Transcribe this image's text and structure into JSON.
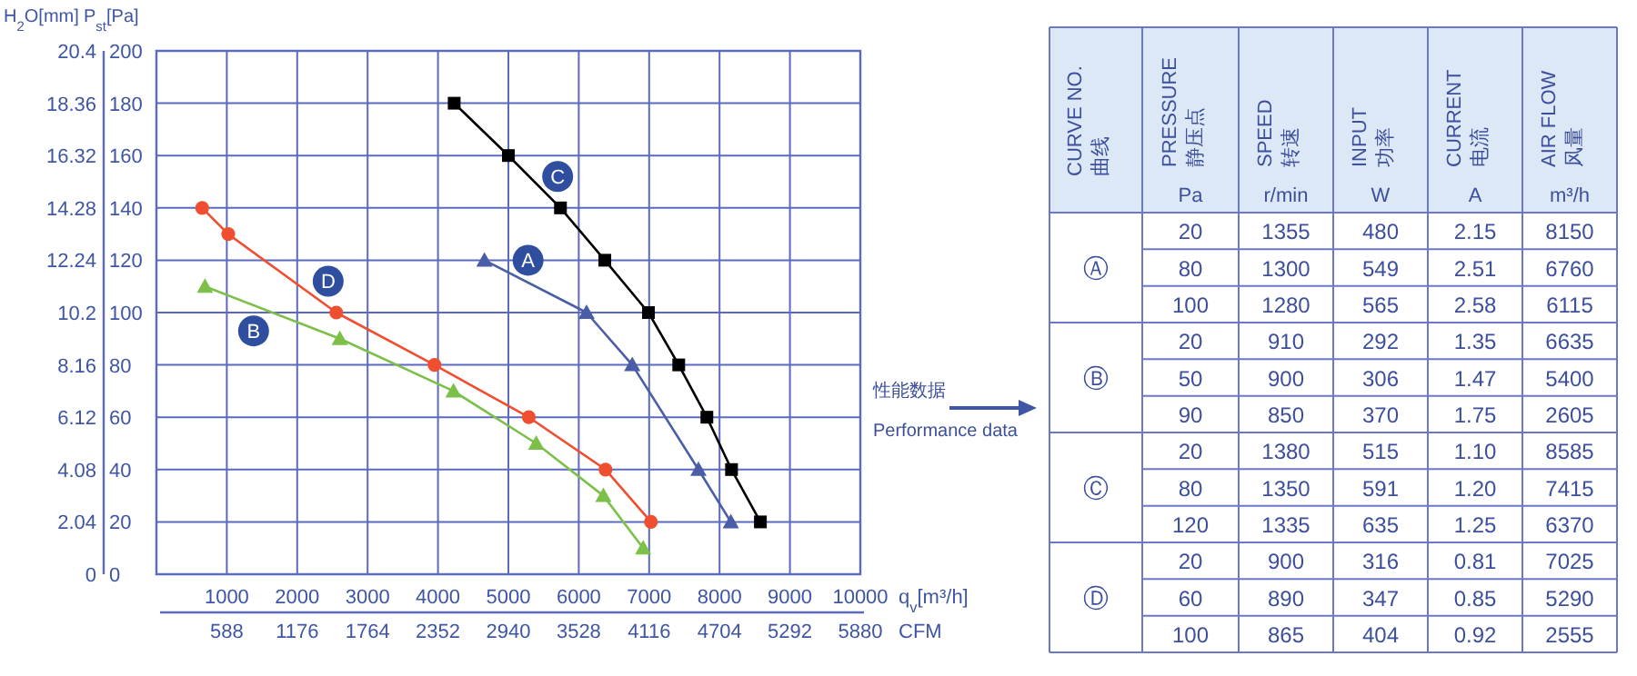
{
  "chart_data": [
    {
      "type": "line",
      "ylabel": "P$_{st}$[Pa]",
      "y2label": "H$_{2}$O[mm]",
      "xlabel": "q$_{v}$[m³/h]",
      "x2label": "CFM",
      "xlim": [
        0,
        10000
      ],
      "xticks": [
        1000,
        2000,
        3000,
        4000,
        5000,
        6000,
        7000,
        8000,
        9000,
        10000
      ],
      "x2lim": [
        0,
        5880
      ],
      "x2ticks": [
        588,
        1176,
        1764,
        2352,
        2940,
        3528,
        4116,
        4704,
        5292,
        5880
      ],
      "ylim": [
        0,
        200
      ],
      "yticks": [
        0,
        20,
        40,
        60,
        80,
        100,
        120,
        140,
        160,
        180,
        200
      ],
      "y2lim": [
        0,
        20.4
      ],
      "y2ticks": [
        0,
        2.04,
        4.08,
        6.12,
        8.16,
        10.2,
        12.24,
        14.28,
        16.32,
        18.36,
        20.4
      ],
      "grid": true,
      "line_style": "solid",
      "series": [
        {
          "color": "#000000",
          "marker": "square",
          "x": [
            4230,
            5000,
            5740,
            6370,
            6990,
            7420,
            7820,
            8170,
            8580
          ],
          "values": [
            180,
            160,
            140,
            120,
            100,
            80,
            60,
            40,
            20
          ]
        },
        {
          "color": "#4a5ea8",
          "marker": "triangle",
          "x": [
            4660,
            6110,
            6760,
            7700,
            8160
          ],
          "values": [
            120,
            100,
            80,
            40,
            20
          ]
        },
        {
          "color": "#f04e30",
          "marker": "circle",
          "x": [
            650,
            1020,
            2555,
            3950,
            5290,
            6380,
            7025
          ],
          "values": [
            140,
            130,
            100,
            80,
            60,
            40,
            20
          ]
        },
        {
          "color": "#7cc04a",
          "marker": "triangle",
          "x": [
            690,
            2605,
            4220,
            5395,
            6350,
            6915
          ],
          "values": [
            110,
            90,
            70,
            50,
            30,
            10
          ]
        }
      ],
      "annotations": [
        {
          "text": "C",
          "x": 5700,
          "y": 152
        },
        {
          "text": "A",
          "x": 5280,
          "y": 120
        },
        {
          "text": "D",
          "x": 2440,
          "y": 112
        },
        {
          "text": "B",
          "x": 1380,
          "y": 93
        }
      ]
    },
    {
      "type": "other",
      "title": "性能数据",
      "subtitle": "Performance data",
      "categories": [
        [
          "CURVE NO.",
          "曲线",
          null
        ],
        [
          "PRESSURE",
          "静压点",
          "Pa"
        ],
        [
          "SPEED",
          "转速",
          "r/min"
        ],
        [
          "INPUT",
          "功率",
          "W"
        ],
        [
          "CURRENT",
          "电流",
          "A"
        ],
        [
          "AIR FLOW",
          "风量",
          "m³/h"
        ]
      ],
      "y_categories": [
        "Ⓐ",
        "Ⓑ",
        "Ⓒ",
        "Ⓓ"
      ],
      "cell_labels": [
        [
          "20",
          "1355",
          "480",
          "2.15",
          "8150"
        ],
        [
          "80",
          "1300",
          "549",
          "2.51",
          "6760"
        ],
        [
          "100",
          "1280",
          "565",
          "2.58",
          "6115"
        ],
        [
          "20",
          "910",
          "292",
          "1.35",
          "6635"
        ],
        [
          "50",
          "900",
          "306",
          "1.47",
          "5400"
        ],
        [
          "90",
          "850",
          "370",
          "1.75",
          "2605"
        ],
        [
          "20",
          "1380",
          "515",
          "1.10",
          "8585"
        ],
        [
          "80",
          "1350",
          "591",
          "1.20",
          "7415"
        ],
        [
          "120",
          "1335",
          "635",
          "1.25",
          "6370"
        ],
        [
          "20",
          "900",
          "316",
          "0.81",
          "7025"
        ],
        [
          "60",
          "890",
          "347",
          "0.85",
          "5290"
        ],
        [
          "100",
          "865",
          "404",
          "0.92",
          "2555"
        ]
      ]
    }
  ]
}
